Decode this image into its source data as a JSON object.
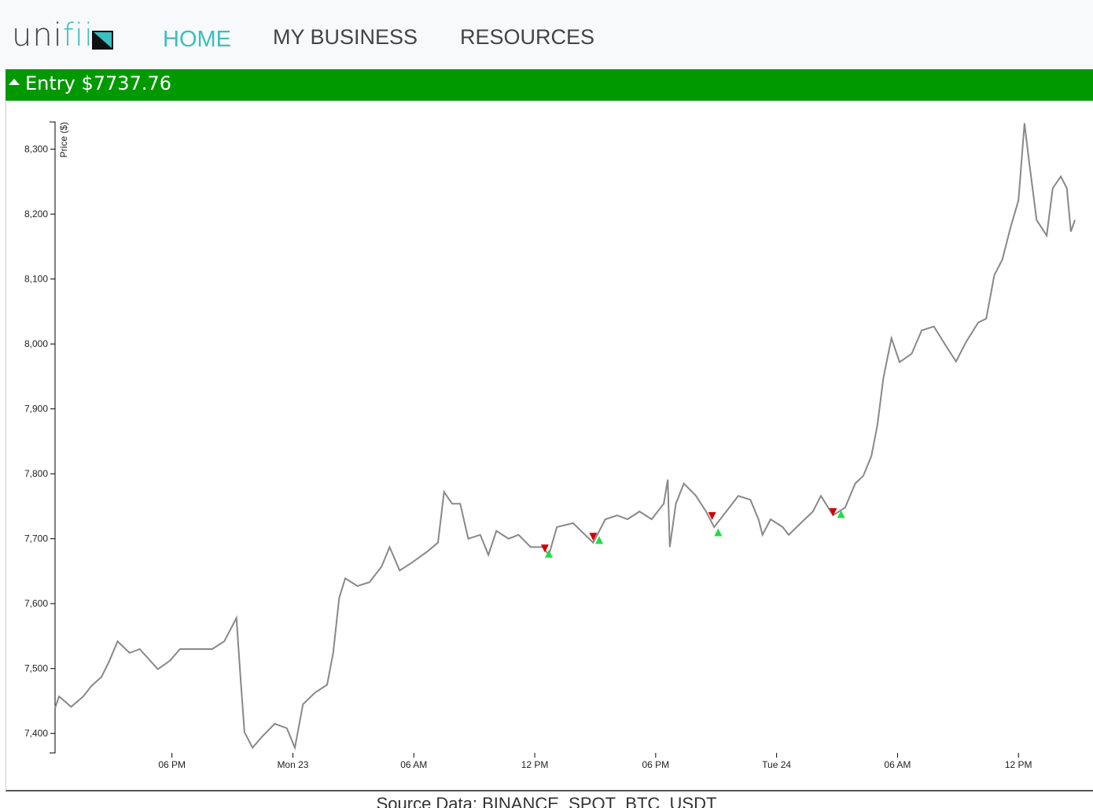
{
  "logo": {
    "left": "uni",
    "right": "fii"
  },
  "nav": [
    "HOME",
    "MY BUSINESS",
    "RESOURCES"
  ],
  "banner": "Entry $7737.76",
  "source": "Source Data: BINANCE_SPOT_BTC_USDT",
  "chart_data": {
    "type": "line",
    "y_label": "Price ($)",
    "color": "#888888",
    "x": [
      12.2,
      12.4,
      13.0,
      13.6,
      14.0,
      14.5,
      14.9,
      15.3,
      15.9,
      16.4,
      17.3,
      17.9,
      18.4,
      19.2,
      20.0,
      20.6,
      21.2,
      21.4,
      21.6,
      22.0,
      22.5,
      23.1,
      23.7,
      24.1,
      24.5,
      25.1,
      25.7,
      26.0,
      26.3,
      26.6,
      27.2,
      27.8,
      28.4,
      28.8,
      29.3,
      29.9,
      30.7,
      31.2,
      31.5,
      31.9,
      32.3,
      32.7,
      33.3,
      33.7,
      34.1,
      34.7,
      35.2,
      35.8,
      36.4,
      36.7,
      37.1,
      37.9,
      38.5,
      38.9,
      39.5,
      40.1,
      40.6,
      41.2,
      41.8,
      42.4,
      42.6,
      42.7,
      43.0,
      43.4,
      44.0,
      44.5,
      44.9,
      45.5,
      46.1,
      46.7,
      47.1,
      47.3,
      47.7,
      48.3,
      48.6,
      49.2,
      49.8,
      50.2,
      50.8,
      51.4,
      51.9,
      52.3,
      52.7,
      53.0,
      53.3,
      53.7,
      54.1,
      54.7,
      55.2,
      55.8,
      56.4,
      56.9,
      57.4,
      58.0,
      58.4,
      58.8,
      59.2,
      59.6,
      60.0,
      60.3,
      60.5,
      60.9,
      61.4,
      61.7,
      62.1,
      62.4,
      62.6,
      62.8
    ],
    "values": [
      7439,
      7457,
      7441,
      7457,
      7473,
      7487,
      7512,
      7542,
      7524,
      7530,
      7499,
      7512,
      7530,
      7530,
      7530,
      7542,
      7578,
      7487,
      7402,
      7378,
      7396,
      7415,
      7408,
      7378,
      7445,
      7463,
      7475,
      7524,
      7609,
      7639,
      7627,
      7633,
      7657,
      7687,
      7651,
      7663,
      7681,
      7694,
      7772,
      7754,
      7754,
      7700,
      7706,
      7675,
      7712,
      7700,
      7706,
      7687,
      7687,
      7675,
      7718,
      7724,
      7706,
      7694,
      7730,
      7736,
      7730,
      7742,
      7730,
      7754,
      7791,
      7687,
      7754,
      7785,
      7766,
      7742,
      7718,
      7742,
      7766,
      7760,
      7730,
      7706,
      7730,
      7718,
      7706,
      7724,
      7742,
      7766,
      7736,
      7748,
      7785,
      7797,
      7827,
      7875,
      7948,
      8009,
      7972,
      7985,
      8021,
      8027,
      7997,
      7973,
      8003,
      8033,
      8039,
      8106,
      8130,
      8179,
      8221,
      8340,
      8288,
      8191,
      8167,
      8240,
      8258,
      8240,
      8173,
      8191
    ],
    "sell_markers": {
      "color": "#d40000",
      "x": [
        36.5,
        38.9,
        44.8,
        50.8
      ],
      "values": [
        7685,
        7703,
        7735,
        7741
      ]
    },
    "buy_markers": {
      "color": "#22dd44",
      "x": [
        36.7,
        39.2,
        45.1,
        51.2
      ],
      "values": [
        7677,
        7698,
        7710,
        7738
      ]
    },
    "xlim": [
      12.2,
      62.8
    ],
    "ylim": [
      7370,
      8342
    ],
    "xticks": [
      {
        "value": 18,
        "label": "06 PM"
      },
      {
        "value": 24,
        "label": "Mon 23"
      },
      {
        "value": 30,
        "label": "06 AM"
      },
      {
        "value": 36,
        "label": "12 PM"
      },
      {
        "value": 42,
        "label": "06 PM"
      },
      {
        "value": 48,
        "label": "Tue 24"
      },
      {
        "value": 54,
        "label": "06 AM"
      },
      {
        "value": 60,
        "label": "12 PM"
      }
    ],
    "yticks": [
      {
        "value": 7400,
        "label": "7,400"
      },
      {
        "value": 7500,
        "label": "7,500"
      },
      {
        "value": 7600,
        "label": "7,600"
      },
      {
        "value": 7700,
        "label": "7,700"
      },
      {
        "value": 7800,
        "label": "7,800"
      },
      {
        "value": 7900,
        "label": "7,900"
      },
      {
        "value": 8000,
        "label": "8,000"
      },
      {
        "value": 8100,
        "label": "8,100"
      },
      {
        "value": 8200,
        "label": "8,200"
      },
      {
        "value": 8300,
        "label": "8,300"
      }
    ]
  }
}
